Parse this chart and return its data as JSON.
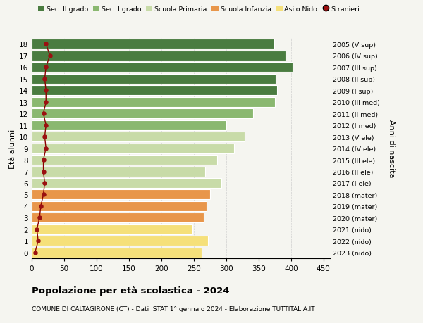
{
  "ages": [
    0,
    1,
    2,
    3,
    4,
    5,
    6,
    7,
    8,
    9,
    10,
    11,
    12,
    13,
    14,
    15,
    16,
    17,
    18
  ],
  "bar_values": [
    262,
    272,
    248,
    265,
    270,
    275,
    292,
    268,
    286,
    312,
    328,
    300,
    342,
    375,
    378,
    376,
    402,
    392,
    374
  ],
  "bar_colors": [
    "#f5e07a",
    "#f5e07a",
    "#f5e07a",
    "#e8964a",
    "#e8964a",
    "#e8964a",
    "#c8dba8",
    "#c8dba8",
    "#c8dba8",
    "#c8dba8",
    "#c8dba8",
    "#8ab870",
    "#8ab870",
    "#8ab870",
    "#4a7c40",
    "#4a7c40",
    "#4a7c40",
    "#4a7c40",
    "#4a7c40"
  ],
  "stranieri_values": [
    5,
    10,
    8,
    12,
    14,
    18,
    20,
    18,
    18,
    22,
    20,
    22,
    18,
    22,
    22,
    20,
    22,
    28,
    22
  ],
  "right_labels": [
    "2023 (nido)",
    "2022 (nido)",
    "2021 (nido)",
    "2020 (mater)",
    "2019 (mater)",
    "2018 (mater)",
    "2017 (I ele)",
    "2016 (II ele)",
    "2015 (III ele)",
    "2014 (IV ele)",
    "2013 (V ele)",
    "2012 (I med)",
    "2011 (II med)",
    "2010 (III med)",
    "2009 (I sup)",
    "2008 (II sup)",
    "2007 (III sup)",
    "2006 (IV sup)",
    "2005 (V sup)"
  ],
  "legend_labels": [
    "Sec. II grado",
    "Sec. I grado",
    "Scuola Primaria",
    "Scuola Infanzia",
    "Asilo Nido",
    "Stranieri"
  ],
  "legend_colors": [
    "#4a7c40",
    "#8ab870",
    "#c8dba8",
    "#e8964a",
    "#f5e07a",
    "#9b1010"
  ],
  "title": "Popolazione per età scolastica - 2024",
  "subtitle": "COMUNE DI CALTAGIRONE (CT) - Dati ISTAT 1° gennaio 2024 - Elaborazione TUTTITALIA.IT",
  "ylabel_left": "Età alunni",
  "ylabel_right": "Anni di nascita",
  "xlim": [
    0,
    460
  ],
  "xticks": [
    0,
    50,
    100,
    150,
    200,
    250,
    300,
    350,
    400,
    450
  ],
  "background_color": "#f5f5f0",
  "grid_color": "#cccccc"
}
